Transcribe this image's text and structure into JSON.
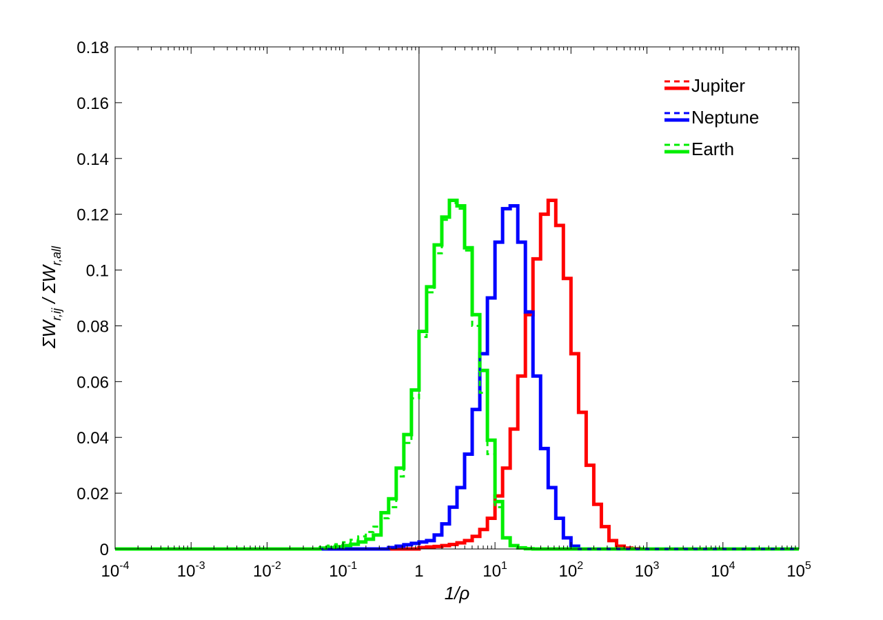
{
  "chart_data": {
    "type": "line",
    "title": "",
    "xlabel": "1/ρ",
    "ylabel": "ΣW_{r,ij} / ΣW_{r,all}",
    "x_scale": "log",
    "xlim": [
      0.0001,
      100000
    ],
    "ylim": [
      0,
      0.18
    ],
    "x_ticks": [
      {
        "value": 0.0001,
        "base": "10",
        "exp": "-4"
      },
      {
        "value": 0.001,
        "base": "10",
        "exp": "-3"
      },
      {
        "value": 0.01,
        "base": "10",
        "exp": "-2"
      },
      {
        "value": 0.1,
        "base": "10",
        "exp": "-1"
      },
      {
        "value": 1,
        "base": "1",
        "exp": ""
      },
      {
        "value": 10,
        "base": "10",
        "exp": "1"
      },
      {
        "value": 100,
        "base": "10",
        "exp": "2"
      },
      {
        "value": 1000,
        "base": "10",
        "exp": "3"
      },
      {
        "value": 10000,
        "base": "10",
        "exp": "4"
      },
      {
        "value": 100000,
        "base": "10",
        "exp": "5"
      }
    ],
    "y_ticks": [
      {
        "value": 0,
        "label": "0"
      },
      {
        "value": 0.02,
        "label": "0.02"
      },
      {
        "value": 0.04,
        "label": "0.04"
      },
      {
        "value": 0.06,
        "label": "0.06"
      },
      {
        "value": 0.08,
        "label": "0.08"
      },
      {
        "value": 0.1,
        "label": "0.1"
      },
      {
        "value": 0.12,
        "label": "0.12"
      },
      {
        "value": 0.14,
        "label": "0.14"
      },
      {
        "value": 0.16,
        "label": "0.16"
      },
      {
        "value": 0.18,
        "label": "0.18"
      }
    ],
    "reference_line_x": 1,
    "grid": false,
    "legend_position": "top-right",
    "step_bins": {
      "log10_start": -4,
      "log10_end": 5,
      "log10_width": 0.1
    },
    "series": [
      {
        "name": "Jupiter",
        "color": "#ff0000",
        "line": "solid",
        "log10_centers": [
          0.05,
          0.15,
          0.25,
          0.35,
          0.45,
          0.55,
          0.65,
          0.75,
          0.85,
          0.95,
          1.05,
          1.15,
          1.25,
          1.35,
          1.45,
          1.55,
          1.65,
          1.75,
          1.85,
          1.95,
          2.05,
          2.15,
          2.25,
          2.35,
          2.45,
          2.55,
          2.65,
          2.75,
          2.85
        ],
        "values": [
          0.0005,
          0.0007,
          0.0009,
          0.0012,
          0.0016,
          0.0022,
          0.003,
          0.0045,
          0.007,
          0.011,
          0.019,
          0.029,
          0.043,
          0.062,
          0.084,
          0.104,
          0.12,
          0.125,
          0.116,
          0.097,
          0.07,
          0.049,
          0.03,
          0.016,
          0.008,
          0.003,
          0.001,
          0.0003,
          0.0001
        ]
      },
      {
        "name": "Neptune",
        "color": "#0000ff",
        "line": "solid",
        "log10_centers": [
          -0.35,
          -0.25,
          -0.15,
          -0.05,
          0.05,
          0.15,
          0.25,
          0.35,
          0.45,
          0.55,
          0.65,
          0.75,
          0.85,
          0.95,
          1.05,
          1.15,
          1.25,
          1.35,
          1.45,
          1.55,
          1.65,
          1.75,
          1.85,
          1.95,
          2.05
        ],
        "values": [
          0.0005,
          0.001,
          0.0015,
          0.002,
          0.0025,
          0.003,
          0.005,
          0.009,
          0.015,
          0.022,
          0.034,
          0.05,
          0.07,
          0.09,
          0.11,
          0.122,
          0.123,
          0.11,
          0.085,
          0.062,
          0.036,
          0.022,
          0.011,
          0.004,
          0.001
        ]
      },
      {
        "name": "Earth",
        "color": "#00ee00",
        "line": "solid",
        "log10_centers": [
          -1.25,
          -1.15,
          -1.05,
          -0.95,
          -0.85,
          -0.75,
          -0.65,
          -0.55,
          -0.45,
          -0.35,
          -0.25,
          -0.15,
          -0.05,
          0.05,
          0.15,
          0.25,
          0.35,
          0.45,
          0.55,
          0.65,
          0.75,
          0.85,
          0.95,
          1.05,
          1.15,
          1.25,
          1.35,
          1.45
        ],
        "values": [
          0.0003,
          0.0005,
          0.0008,
          0.0012,
          0.0017,
          0.0025,
          0.0035,
          0.005,
          0.013,
          0.018,
          0.029,
          0.041,
          0.057,
          0.078,
          0.094,
          0.109,
          0.119,
          0.125,
          0.123,
          0.108,
          0.084,
          0.064,
          0.039,
          0.017,
          0.004,
          0.0012,
          0.0004,
          0.0001
        ]
      },
      {
        "name": "Jupiter (dashed)",
        "color": "#ff0000",
        "line": "dashed",
        "log10_centers": [
          0.05,
          0.15,
          0.25,
          0.35,
          0.45,
          0.55,
          0.65,
          0.75,
          0.85,
          0.95,
          1.05,
          1.15,
          1.25,
          1.35,
          1.45,
          1.55,
          1.65,
          1.75,
          1.85,
          1.95,
          2.05,
          2.15,
          2.25,
          2.35,
          2.45,
          2.55,
          2.65,
          2.75,
          2.85
        ],
        "values": [
          0.0005,
          0.0007,
          0.0009,
          0.0012,
          0.0016,
          0.0022,
          0.003,
          0.0045,
          0.007,
          0.011,
          0.019,
          0.029,
          0.043,
          0.062,
          0.084,
          0.104,
          0.12,
          0.125,
          0.116,
          0.097,
          0.07,
          0.049,
          0.03,
          0.016,
          0.008,
          0.003,
          0.001,
          0.0003,
          0.0001
        ]
      },
      {
        "name": "Neptune (dashed)",
        "color": "#0000ff",
        "line": "dashed",
        "log10_centers": [
          -0.35,
          -0.25,
          -0.15,
          -0.05,
          0.05,
          0.15,
          0.25,
          0.35,
          0.45,
          0.55,
          0.65,
          0.75,
          0.85,
          0.95,
          1.05,
          1.15,
          1.25,
          1.35,
          1.45,
          1.55,
          1.65,
          1.75,
          1.85,
          1.95,
          2.05
        ],
        "values": [
          0.0005,
          0.001,
          0.0015,
          0.002,
          0.0025,
          0.003,
          0.005,
          0.009,
          0.015,
          0.022,
          0.034,
          0.05,
          0.07,
          0.09,
          0.11,
          0.122,
          0.123,
          0.11,
          0.085,
          0.062,
          0.036,
          0.022,
          0.011,
          0.004,
          0.001
        ]
      },
      {
        "name": "Earth (dashed)",
        "color": "#00ee00",
        "line": "dashed",
        "log10_centers": [
          -1.25,
          -1.15,
          -1.05,
          -0.95,
          -0.85,
          -0.75,
          -0.65,
          -0.55,
          -0.45,
          -0.35,
          -0.25,
          -0.15,
          -0.05,
          0.05,
          0.15,
          0.25,
          0.35,
          0.45,
          0.55,
          0.65,
          0.75,
          0.85,
          0.95,
          1.05,
          1.15,
          1.25,
          1.35,
          1.45
        ],
        "values": [
          0.0008,
          0.0012,
          0.0017,
          0.0024,
          0.0033,
          0.0045,
          0.0061,
          0.008,
          0.011,
          0.015,
          0.026,
          0.038,
          0.054,
          0.076,
          0.092,
          0.106,
          0.118,
          0.124,
          0.122,
          0.107,
          0.08,
          0.056,
          0.034,
          0.015,
          0.004,
          0.0012,
          0.0004,
          0.0001
        ]
      }
    ],
    "legend": [
      {
        "label": "Jupiter",
        "color": "#ff0000"
      },
      {
        "label": "Neptune",
        "color": "#0000ff"
      },
      {
        "label": "Earth",
        "color": "#00ee00"
      }
    ]
  }
}
